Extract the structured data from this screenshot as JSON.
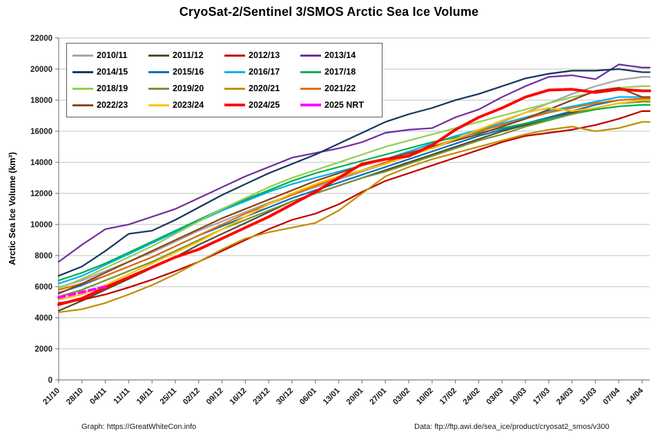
{
  "title": "CryoSat-2/Sentinel 3/SMOS Arctic Sea Ice Volume",
  "footer": {
    "left": "Graph: https://GreatWhiteCon.info",
    "right": "Data: ftp://ftp.awi.de/sea_ice/product/cryosat2_smos/v300"
  },
  "chart_data": {
    "type": "line",
    "title": "CryoSat-2/Sentinel 3/SMOS Arctic Sea Ice Volume",
    "xlabel": "",
    "ylabel": "Arctic Sea Ice Volume (km³)",
    "ylim": [
      0,
      22000
    ],
    "ytick_step": 2000,
    "grid": "horizontal",
    "legend_position": "top-left",
    "colors": {
      "gridline": "#BFBFBF",
      "axis": "#7F7F7F",
      "tick_text": "#1a1a1a"
    },
    "x_labels": [
      "21/10",
      "28/10",
      "04/11",
      "11/11",
      "18/11",
      "25/11",
      "02/12",
      "09/12",
      "16/12",
      "23/12",
      "30/12",
      "06/01",
      "13/01",
      "20/01",
      "27/01",
      "03/02",
      "10/02",
      "17/02",
      "24/02",
      "03/03",
      "10/03",
      "17/03",
      "24/03",
      "31/03",
      "07/04",
      "14/04"
    ],
    "series": [
      {
        "name": "2010/11",
        "color": "#A6A6A6",
        "width": 2.3,
        "values": [
          5950,
          6400,
          7000,
          7600,
          8200,
          8900,
          9600,
          10200,
          10800,
          11400,
          11900,
          12400,
          12900,
          13400,
          13900,
          14400,
          14900,
          15400,
          16000,
          16600,
          17200,
          17800,
          18400,
          18900,
          19300,
          19500
        ]
      },
      {
        "name": "2011/12",
        "color": "#4F4D2B",
        "width": 2.3,
        "values": [
          4450,
          5100,
          5800,
          6500,
          7200,
          7900,
          8700,
          9400,
          10100,
          10800,
          11500,
          12000,
          12500,
          13000,
          13500,
          14000,
          14500,
          15000,
          15500,
          16000,
          16400,
          16800,
          17200,
          17500,
          17800,
          17900
        ]
      },
      {
        "name": "2012/13",
        "color": "#C00000",
        "width": 2.3,
        "values": [
          4950,
          5150,
          5500,
          5950,
          6450,
          7000,
          7600,
          8300,
          9000,
          9700,
          10300,
          10700,
          11300,
          12100,
          12800,
          13300,
          13800,
          14300,
          14800,
          15300,
          15700,
          15900,
          16100,
          16400,
          16800,
          17300
        ]
      },
      {
        "name": "2013/14",
        "color": "#7030A0",
        "width": 2.3,
        "values": [
          7600,
          8700,
          9700,
          10000,
          10500,
          11000,
          11700,
          12400,
          13100,
          13700,
          14300,
          14600,
          14900,
          15300,
          15900,
          16100,
          16200,
          16900,
          17400,
          18200,
          18900,
          19500,
          19600,
          19350,
          20300,
          20100
        ]
      },
      {
        "name": "2014/15",
        "color": "#17375E",
        "width": 2.3,
        "values": [
          6700,
          7300,
          8300,
          9400,
          9600,
          10300,
          11100,
          11900,
          12600,
          13300,
          13900,
          14500,
          15200,
          15900,
          16600,
          17100,
          17500,
          18000,
          18400,
          18900,
          19400,
          19700,
          19900,
          19900,
          20000,
          19800
        ]
      },
      {
        "name": "2015/16",
        "color": "#0070C0",
        "width": 2.3,
        "values": [
          5600,
          6100,
          6700,
          7300,
          7900,
          8600,
          9300,
          9900,
          10500,
          11100,
          11700,
          12200,
          12700,
          13200,
          13700,
          14200,
          14700,
          15200,
          15700,
          16100,
          16500,
          16900,
          17300,
          17700,
          18000,
          18100
        ]
      },
      {
        "name": "2016/17",
        "color": "#00B0F0",
        "width": 2.3,
        "values": [
          6200,
          6700,
          7400,
          8100,
          8800,
          9500,
          10200,
          10900,
          11500,
          12100,
          12600,
          13000,
          13400,
          13800,
          14200,
          14700,
          15200,
          15700,
          16100,
          16500,
          16900,
          17300,
          17600,
          17900,
          18200,
          18200
        ]
      },
      {
        "name": "2017/18",
        "color": "#00B050",
        "width": 2.3,
        "values": [
          6400,
          6900,
          7500,
          8200,
          8900,
          9600,
          10300,
          11000,
          11600,
          12200,
          12800,
          13300,
          13700,
          14100,
          14500,
          14900,
          15300,
          15600,
          15900,
          16200,
          16500,
          16800,
          17100,
          17400,
          17600,
          17700
        ]
      },
      {
        "name": "2018/19",
        "color": "#92D050",
        "width": 2.3,
        "values": [
          5900,
          6500,
          7200,
          7900,
          8600,
          9400,
          10200,
          11000,
          11700,
          12400,
          13000,
          13500,
          14000,
          14500,
          15000,
          15400,
          15800,
          16200,
          16600,
          17000,
          17400,
          17800,
          18200,
          18500,
          18800,
          18900
        ]
      },
      {
        "name": "2019/20",
        "color": "#77933C",
        "width": 2.3,
        "values": [
          5350,
          5800,
          6400,
          7000,
          7600,
          8300,
          9000,
          9700,
          10300,
          10900,
          11500,
          12000,
          12500,
          13000,
          13400,
          13900,
          14400,
          14900,
          15400,
          15800,
          16300,
          16700,
          17100,
          17500,
          17800,
          17900
        ]
      },
      {
        "name": "2020/21",
        "color": "#BF9000",
        "width": 2.3,
        "values": [
          4350,
          4550,
          4950,
          5500,
          6100,
          6800,
          7600,
          8400,
          9100,
          9500,
          9800,
          10100,
          10900,
          12000,
          13100,
          13700,
          14200,
          14600,
          15000,
          15400,
          15800,
          16100,
          16300,
          16000,
          16200,
          16600
        ]
      },
      {
        "name": "2021/22",
        "color": "#E36C09",
        "width": 2.3,
        "values": [
          5800,
          6200,
          6700,
          7300,
          7900,
          8600,
          9300,
          10000,
          10700,
          11300,
          11900,
          12500,
          13000,
          13500,
          14000,
          14500,
          15000,
          15500,
          16000,
          16400,
          16800,
          17200,
          17500,
          17800,
          18000,
          18100
        ]
      },
      {
        "name": "2022/23",
        "color": "#8F4318",
        "width": 2.3,
        "values": [
          5550,
          6200,
          6900,
          7600,
          8300,
          9000,
          9700,
          10400,
          11000,
          11600,
          12200,
          12800,
          13300,
          13800,
          14200,
          14600,
          15000,
          15400,
          15800,
          16300,
          16800,
          17400,
          18000,
          18600,
          18800,
          18200
        ]
      },
      {
        "name": "2023/24",
        "color": "#FFC000",
        "width": 2.3,
        "values": [
          5150,
          5500,
          6100,
          6800,
          7500,
          8200,
          8900,
          9700,
          10500,
          11300,
          12000,
          12600,
          13100,
          13500,
          13900,
          14400,
          14900,
          15500,
          16100,
          16700,
          17200,
          17500,
          17300,
          17500,
          17800,
          18000
        ]
      },
      {
        "name": "2024/25",
        "color": "#FF0000",
        "width": 4,
        "values": [
          4850,
          5250,
          5950,
          6600,
          7250,
          7900,
          8400,
          9100,
          9800,
          10500,
          11300,
          12100,
          13000,
          13900,
          14200,
          14400,
          15100,
          16100,
          16900,
          17500,
          18200,
          18650,
          18700,
          18500,
          18700,
          18600
        ]
      },
      {
        "name": "2025 NRT",
        "color": "#FF00FF",
        "width": 4,
        "dash": "9 6",
        "values": [
          5300,
          5650,
          6000,
          null,
          null,
          null,
          null,
          null,
          null,
          null,
          null,
          null,
          null,
          null,
          null,
          null,
          null,
          null,
          null,
          null,
          null,
          null,
          null,
          null,
          null,
          null
        ]
      }
    ]
  }
}
